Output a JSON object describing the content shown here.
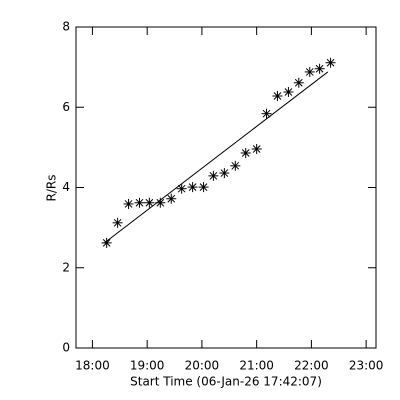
{
  "chart_data": {
    "type": "scatter",
    "xlabel": "Start Time (06-Jan-26 17:42:07)",
    "ylabel": "R/Rs",
    "xlim": [
      17.7,
      23.18
    ],
    "ylim": [
      0,
      8
    ],
    "xticks": [
      {
        "value": 18,
        "label": "18:00"
      },
      {
        "value": 19,
        "label": "19:00"
      },
      {
        "value": 20,
        "label": "20:00"
      },
      {
        "value": 21,
        "label": "21:00"
      },
      {
        "value": 22,
        "label": "22:00"
      },
      {
        "value": 23,
        "label": "23:00"
      }
    ],
    "yticks": [
      0,
      2,
      4,
      6,
      8
    ],
    "color": "#000000",
    "series": [
      {
        "marker": "asterisk",
        "x": [
          18.26,
          18.46,
          18.66,
          18.86,
          19.04,
          19.24,
          19.44,
          19.63,
          19.83,
          20.03,
          20.21,
          20.41,
          20.61,
          20.8,
          21.0,
          21.18,
          21.38,
          21.58,
          21.77,
          21.97,
          22.15,
          22.35
        ],
        "values": [
          2.62,
          3.12,
          3.59,
          3.62,
          3.62,
          3.62,
          3.72,
          3.97,
          4.01,
          4.01,
          4.29,
          4.36,
          4.54,
          4.86,
          4.96,
          5.84,
          6.28,
          6.38,
          6.61,
          6.88,
          6.96,
          7.11
        ]
      },
      {
        "marker": "line",
        "x": [
          18.22,
          22.3
        ],
        "values": [
          2.62,
          6.88
        ]
      }
    ]
  }
}
